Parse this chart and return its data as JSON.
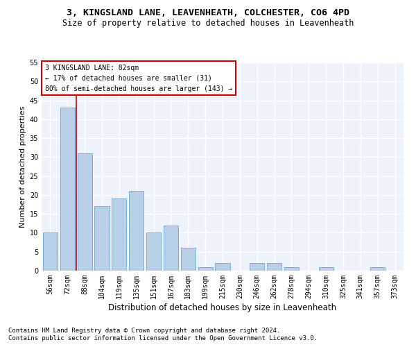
{
  "title1": "3, KINGSLAND LANE, LEAVENHEATH, COLCHESTER, CO6 4PD",
  "title2": "Size of property relative to detached houses in Leavenheath",
  "xlabel": "Distribution of detached houses by size in Leavenheath",
  "ylabel": "Number of detached properties",
  "footnote1": "Contains HM Land Registry data © Crown copyright and database right 2024.",
  "footnote2": "Contains public sector information licensed under the Open Government Licence v3.0.",
  "categories": [
    "56sqm",
    "72sqm",
    "88sqm",
    "104sqm",
    "119sqm",
    "135sqm",
    "151sqm",
    "167sqm",
    "183sqm",
    "199sqm",
    "215sqm",
    "230sqm",
    "246sqm",
    "262sqm",
    "278sqm",
    "294sqm",
    "310sqm",
    "325sqm",
    "341sqm",
    "357sqm",
    "373sqm"
  ],
  "values": [
    10,
    43,
    31,
    17,
    19,
    21,
    10,
    12,
    6,
    1,
    2,
    0,
    2,
    2,
    1,
    0,
    1,
    0,
    0,
    1,
    0
  ],
  "bar_color": "#b8cfe8",
  "bar_edge_color": "#7aafd4",
  "vline_color": "#cc0000",
  "annotation_text": "3 KINGSLAND LANE: 82sqm\n← 17% of detached houses are smaller (31)\n80% of semi-detached houses are larger (143) →",
  "annotation_box_color": "white",
  "annotation_box_edge_color": "#cc0000",
  "ylim": [
    0,
    55
  ],
  "yticks": [
    0,
    5,
    10,
    15,
    20,
    25,
    30,
    35,
    40,
    45,
    50,
    55
  ],
  "background_color": "#eef2fa",
  "grid_color": "#ffffff",
  "title1_fontsize": 9.5,
  "title2_fontsize": 8.5,
  "xlabel_fontsize": 8.5,
  "ylabel_fontsize": 8,
  "tick_fontsize": 7,
  "annotation_fontsize": 7,
  "footnote_fontsize": 6.5
}
